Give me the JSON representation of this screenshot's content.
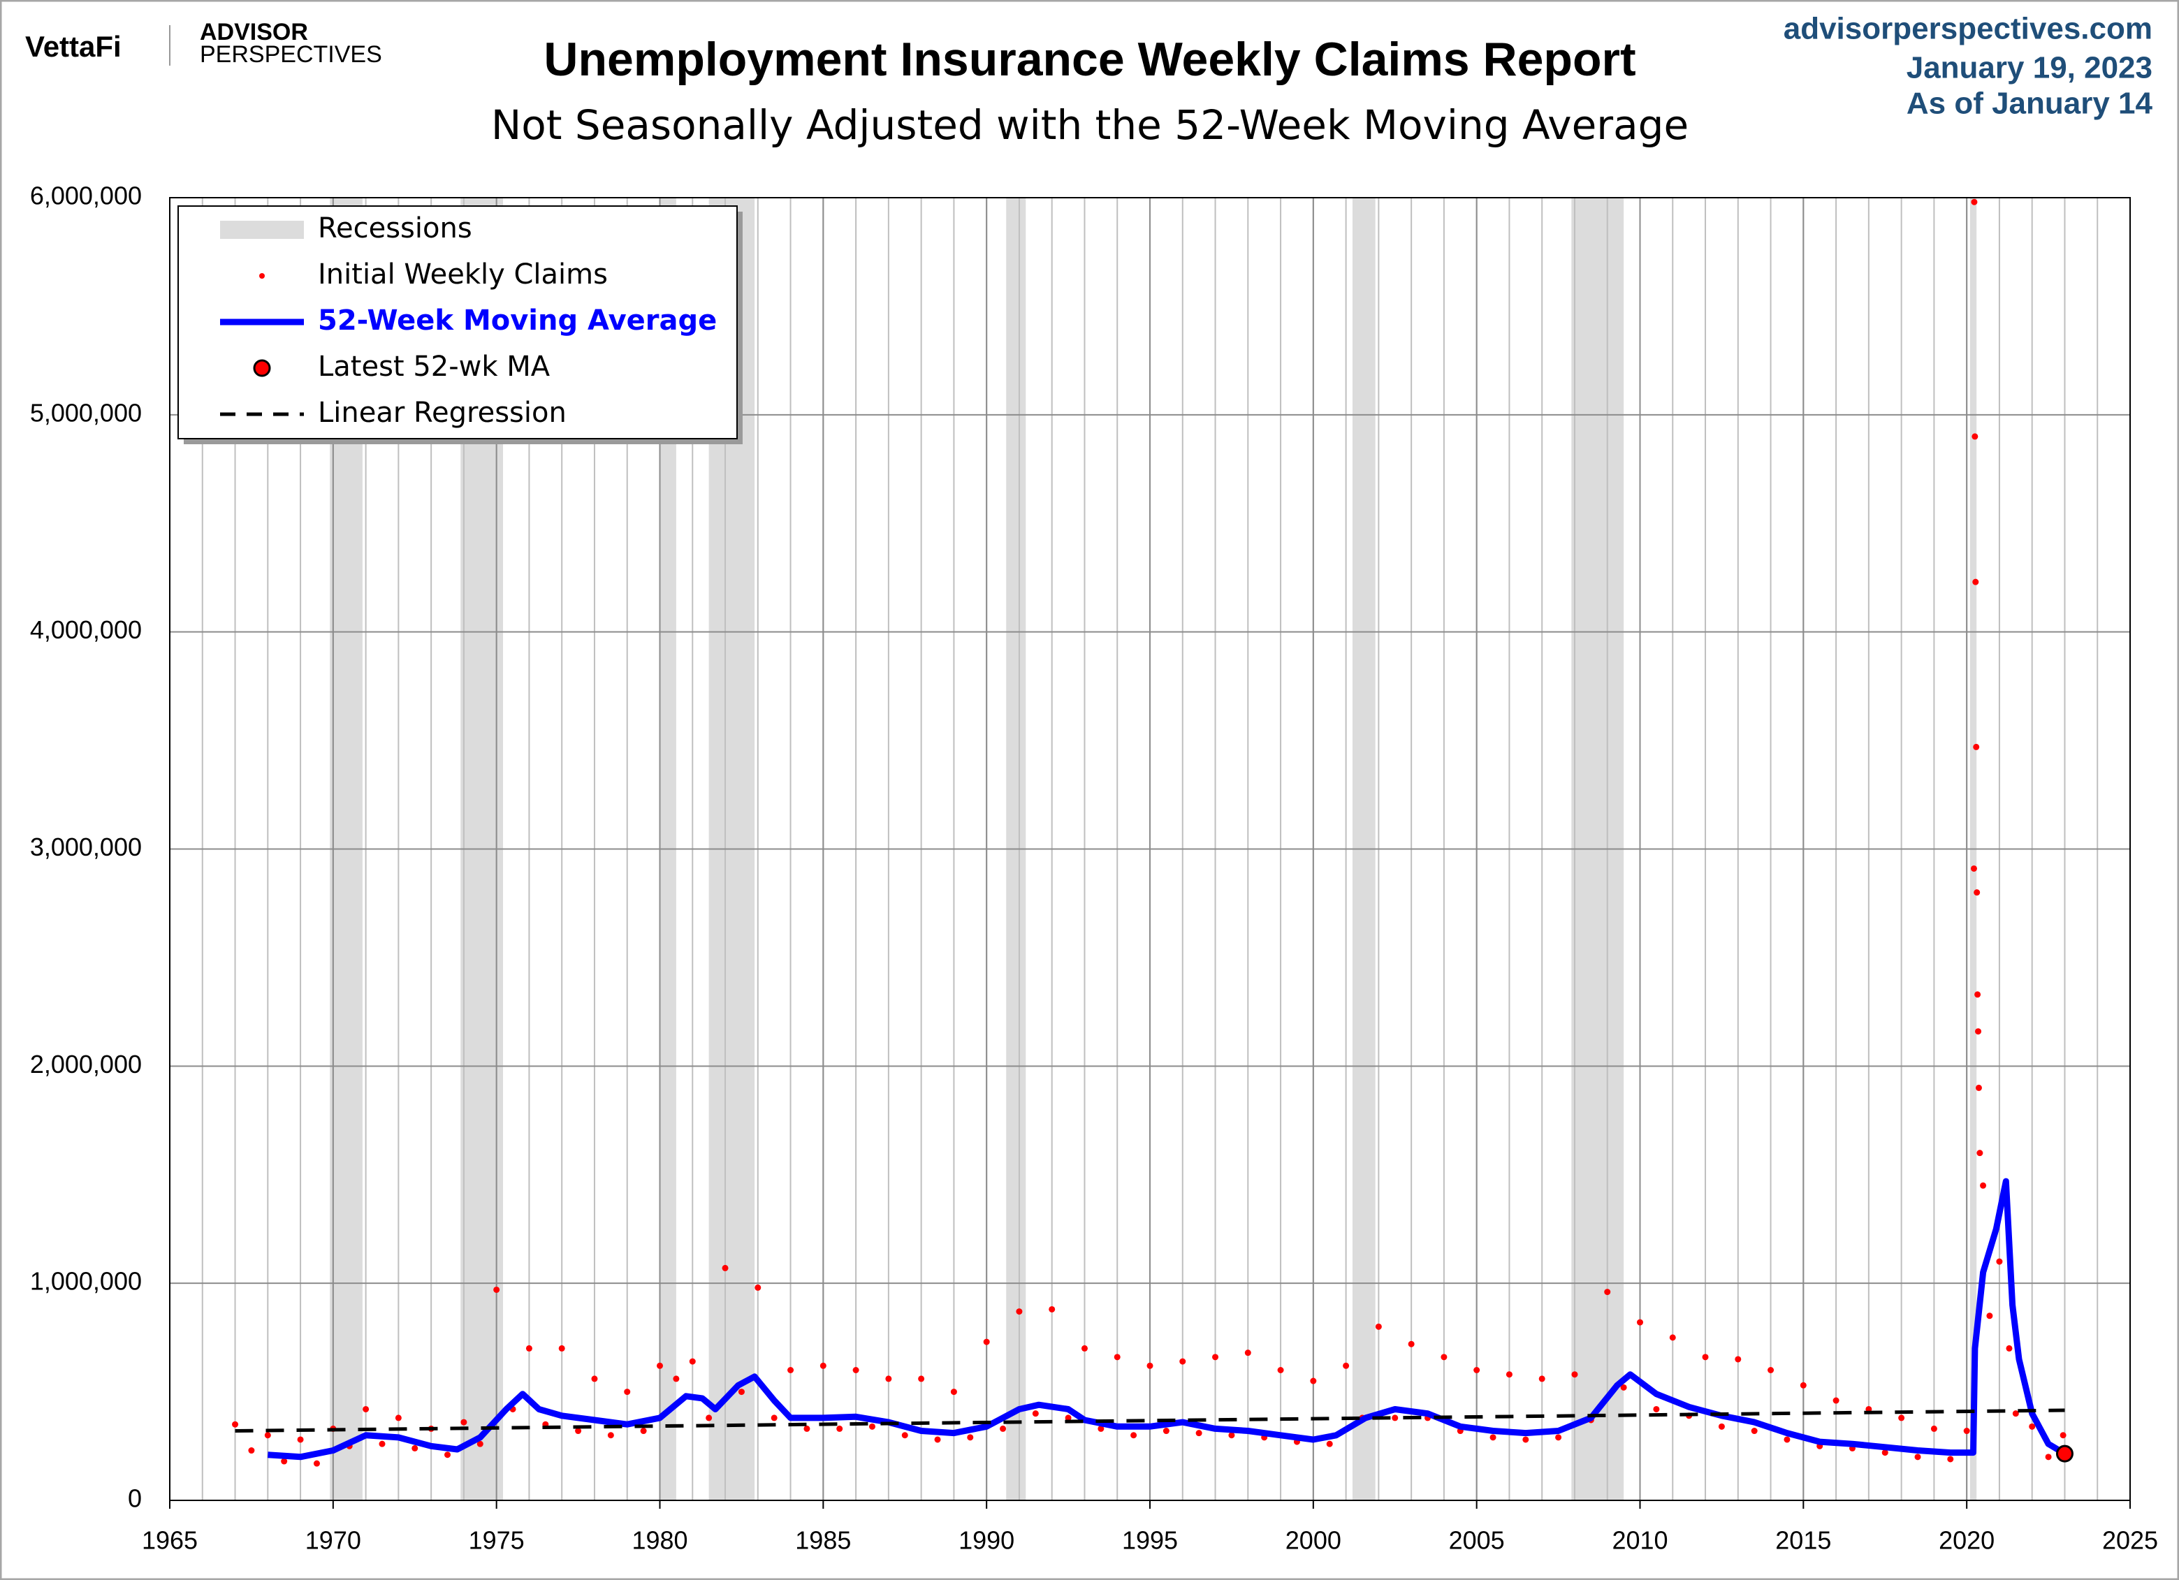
{
  "header": {
    "brand": "VettaFi",
    "logo_line1": "ADVISOR",
    "logo_line2": "PERSPECTIVES",
    "site": "advisorperspectives.com",
    "date": "January 19, 2023",
    "as_of": "As of January 14"
  },
  "chart_data": {
    "type": "combo",
    "title": "Unemployment Insurance Weekly Claims Report",
    "subtitle": "Not Seasonally Adjusted with the 52-Week Moving Average",
    "xlim": [
      1965,
      2025
    ],
    "xticks": [
      1965,
      1970,
      1975,
      1980,
      1985,
      1990,
      1995,
      2000,
      2005,
      2010,
      2015,
      2020,
      2025
    ],
    "ylim": [
      0,
      6000000
    ],
    "yticks": [
      0,
      {
        "value": 1000000,
        "label": "1,000,000"
      },
      {
        "value": 2000000,
        "label": "2,000,000"
      },
      {
        "value": 3000000,
        "label": "3,000,000"
      },
      {
        "value": 4000000,
        "label": "4,000,000"
      },
      {
        "value": 5000000,
        "label": "5,000,000"
      },
      {
        "value": 6000000,
        "label": "6,000,000"
      }
    ],
    "grid": true,
    "legend": "upper-left",
    "series": [
      {
        "name": "Recessions",
        "kind": "band",
        "color": "#dcdcdc",
        "ranges": [
          [
            1969.9,
            1970.9
          ],
          [
            1973.9,
            1975.2
          ],
          [
            1980.0,
            1980.5
          ],
          [
            1981.5,
            1982.9
          ],
          [
            1990.6,
            1991.2
          ],
          [
            2001.2,
            2001.9
          ],
          [
            2007.9,
            2009.5
          ],
          [
            2020.1,
            2020.3
          ]
        ]
      },
      {
        "name": "Initial Weekly Claims",
        "kind": "scatter",
        "color": "#ff0000",
        "x": [
          1967.0,
          1967.5,
          1968.0,
          1968.5,
          1969.0,
          1969.5,
          1970.0,
          1970.5,
          1971.0,
          1971.5,
          1972.0,
          1972.5,
          1973.0,
          1973.5,
          1974.0,
          1974.5,
          1975.0,
          1975.5,
          1976.0,
          1976.5,
          1977.0,
          1977.5,
          1978.0,
          1978.5,
          1979.0,
          1979.5,
          1980.0,
          1980.5,
          1981.0,
          1981.5,
          1982.0,
          1982.5,
          1983.0,
          1983.5,
          1984.0,
          1984.5,
          1985.0,
          1985.5,
          1986.0,
          1986.5,
          1987.0,
          1987.5,
          1988.0,
          1988.5,
          1989.0,
          1989.5,
          1990.0,
          1990.5,
          1991.0,
          1991.5,
          1992.0,
          1992.5,
          1993.0,
          1993.5,
          1994.0,
          1994.5,
          1995.0,
          1995.5,
          1996.0,
          1996.5,
          1997.0,
          1997.5,
          1998.0,
          1998.5,
          1999.0,
          1999.5,
          2000.0,
          2000.5,
          2001.0,
          2001.5,
          2002.0,
          2002.5,
          2003.0,
          2003.5,
          2004.0,
          2004.5,
          2005.0,
          2005.5,
          2006.0,
          2006.5,
          2007.0,
          2007.5,
          2008.0,
          2008.5,
          2009.0,
          2009.5,
          2010.0,
          2010.5,
          2011.0,
          2011.5,
          2012.0,
          2012.5,
          2013.0,
          2013.5,
          2014.0,
          2014.5,
          2015.0,
          2015.5,
          2016.0,
          2016.5,
          2017.0,
          2017.5,
          2018.0,
          2018.5,
          2019.0,
          2019.5,
          2020.0,
          2020.22,
          2020.23,
          2020.25,
          2020.27,
          2020.29,
          2020.31,
          2020.33,
          2020.35,
          2020.37,
          2020.4,
          2020.5,
          2020.7,
          2021.0,
          2021.3,
          2021.5,
          2022.0,
          2022.5,
          2022.95
        ],
        "values": [
          350000,
          230000,
          300000,
          180000,
          280000,
          170000,
          330000,
          250000,
          420000,
          260000,
          380000,
          240000,
          330000,
          210000,
          360000,
          260000,
          970000,
          420000,
          700000,
          350000,
          700000,
          320000,
          560000,
          300000,
          500000,
          320000,
          620000,
          560000,
          640000,
          380000,
          1070000,
          500000,
          980000,
          380000,
          600000,
          330000,
          620000,
          330000,
          600000,
          340000,
          560000,
          300000,
          560000,
          280000,
          500000,
          290000,
          730000,
          330000,
          870000,
          400000,
          880000,
          380000,
          700000,
          330000,
          660000,
          300000,
          620000,
          320000,
          640000,
          310000,
          660000,
          300000,
          680000,
          290000,
          600000,
          270000,
          550000,
          260000,
          620000,
          380000,
          800000,
          380000,
          720000,
          380000,
          660000,
          320000,
          600000,
          290000,
          580000,
          280000,
          560000,
          290000,
          580000,
          370000,
          960000,
          520000,
          820000,
          420000,
          750000,
          390000,
          660000,
          340000,
          650000,
          320000,
          600000,
          280000,
          530000,
          250000,
          460000,
          240000,
          420000,
          220000,
          380000,
          200000,
          330000,
          190000,
          320000,
          2910000,
          5980000,
          4900000,
          4230000,
          3470000,
          2800000,
          2330000,
          2160000,
          1900000,
          1600000,
          1450000,
          850000,
          1100000,
          700000,
          400000,
          340000,
          200000,
          300000
        ]
      },
      {
        "name": "52-Week Moving Average",
        "kind": "line",
        "color": "#0000ff",
        "x": [
          1968,
          1969,
          1970,
          1971,
          1972,
          1973,
          1973.8,
          1974.5,
          1975.3,
          1975.8,
          1976.3,
          1977,
          1978,
          1979,
          1980,
          1980.8,
          1981.3,
          1981.7,
          1982.4,
          1982.9,
          1983.5,
          1984,
          1985,
          1986,
          1987,
          1988,
          1989,
          1990,
          1991,
          1991.6,
          1992.5,
          1993,
          1994,
          1995,
          1996,
          1997,
          1998,
          1999,
          2000,
          2000.7,
          2001.6,
          2002.5,
          2003.5,
          2004.5,
          2005.5,
          2006.5,
          2007.5,
          2008.5,
          2009.3,
          2009.7,
          2010.5,
          2011.5,
          2012.5,
          2013.5,
          2014.5,
          2015.5,
          2016.5,
          2017.5,
          2018.5,
          2019.5,
          2020.2,
          2020.25,
          2020.5,
          2020.9,
          2021.2,
          2021.4,
          2021.6,
          2022.0,
          2022.5,
          2023.0
        ],
        "values": [
          210000,
          200000,
          230000,
          300000,
          290000,
          250000,
          235000,
          290000,
          420000,
          490000,
          420000,
          390000,
          370000,
          350000,
          380000,
          480000,
          470000,
          420000,
          530000,
          570000,
          460000,
          380000,
          380000,
          385000,
          360000,
          320000,
          310000,
          340000,
          420000,
          440000,
          420000,
          370000,
          340000,
          340000,
          360000,
          330000,
          320000,
          300000,
          280000,
          300000,
          380000,
          420000,
          400000,
          340000,
          320000,
          310000,
          320000,
          380000,
          530000,
          580000,
          490000,
          430000,
          390000,
          360000,
          310000,
          270000,
          260000,
          245000,
          230000,
          220000,
          220000,
          700000,
          1050000,
          1250000,
          1470000,
          900000,
          650000,
          400000,
          260000,
          215000
        ]
      },
      {
        "name": "Latest 52-wk MA",
        "kind": "point",
        "color": "#ff0000",
        "x": [
          2023.0
        ],
        "values": [
          215000
        ]
      },
      {
        "name": "Linear Regression",
        "kind": "dashed",
        "color": "#000000",
        "x": [
          1967,
          2023
        ],
        "values": [
          320000,
          415000
        ]
      }
    ]
  }
}
